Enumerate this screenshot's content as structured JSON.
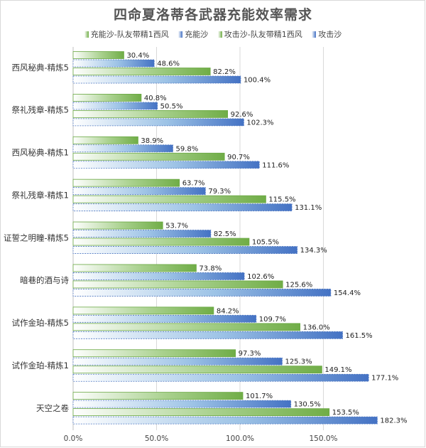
{
  "chart_data": {
    "type": "bar",
    "orientation": "horizontal",
    "title": "四命夏洛蒂各武器充能效率需求",
    "categories": [
      "西风秘典-精炼5",
      "祭礼残章-精炼5",
      "西风秘典-精炼1",
      "祭礼残章-精炼1",
      "证誓之明瞳-精炼5",
      "暗巷的酒与诗",
      "试作金珀-精炼5",
      "试作金珀-精炼1",
      "天空之卷"
    ],
    "series": [
      {
        "name": "充能沙-队友带精1西风",
        "color": "#70ad47",
        "values": [
          30.4,
          40.8,
          38.9,
          63.7,
          53.7,
          73.8,
          84.2,
          97.3,
          101.7
        ]
      },
      {
        "name": "充能沙",
        "color": "#4472c4",
        "values": [
          48.6,
          50.5,
          59.8,
          79.3,
          82.5,
          102.6,
          109.7,
          125.3,
          130.5
        ]
      },
      {
        "name": "攻击沙-队友带精1西风",
        "color": "#70ad47",
        "values": [
          82.2,
          92.6,
          90.7,
          115.5,
          105.5,
          125.6,
          136.0,
          149.1,
          153.5
        ]
      },
      {
        "name": "攻击沙",
        "color": "#4472c4",
        "values": [
          100.4,
          102.3,
          111.6,
          131.1,
          134.3,
          154.4,
          161.5,
          177.1,
          182.3
        ]
      }
    ],
    "value_labels": [
      [
        "30.4%",
        "48.6%",
        "82.2%",
        "100.4%"
      ],
      [
        "40.8%",
        "50.5%",
        "92.6%",
        "102.3%"
      ],
      [
        "38.9%",
        "59.8%",
        "90.7%",
        "111.6%"
      ],
      [
        "63.7%",
        "79.3%",
        "115.5%",
        "131.1%"
      ],
      [
        "53.7%",
        "82.5%",
        "105.5%",
        "134.3%"
      ],
      [
        "73.8%",
        "102.6%",
        "125.6%",
        "154.4%"
      ],
      [
        "84.2%",
        "109.7%",
        "136.0%",
        "161.5%"
      ],
      [
        "97.3%",
        "125.3%",
        "149.1%",
        "177.1%"
      ],
      [
        "101.7%",
        "130.5%",
        "153.5%",
        "182.3%"
      ]
    ],
    "xlim": [
      0,
      200
    ],
    "xticks": [
      0,
      50,
      100,
      150
    ],
    "xtick_labels": [
      "0.0%",
      "50.0%",
      "100.0%",
      "150.0%"
    ],
    "grid": true,
    "legend": "top"
  }
}
